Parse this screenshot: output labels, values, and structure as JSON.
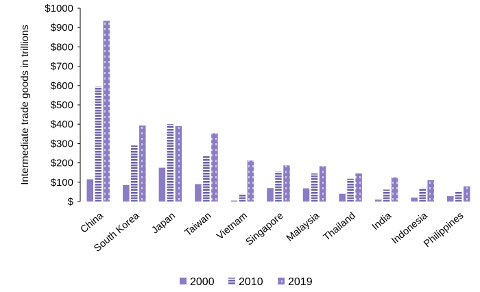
{
  "chart_data": {
    "type": "bar",
    "title": "",
    "xlabel": "",
    "ylabel": "Intermediate trade goods in trillions",
    "categories": [
      "China",
      "South Korea",
      "Japan",
      "Taiwan",
      "Vietnam",
      "Singapore",
      "Malaysia",
      "Thailand",
      "India",
      "Indonesia",
      "Philippines"
    ],
    "series": [
      {
        "name": "2000",
        "values": [
          115,
          85,
          175,
          90,
          5,
          70,
          68,
          40,
          10,
          20,
          28
        ],
        "color": "#8c7cc4",
        "pattern": "solid"
      },
      {
        "name": "2010",
        "values": [
          595,
          290,
          400,
          235,
          40,
          155,
          145,
          118,
          62,
          70,
          55
        ],
        "color": "#8c7cc4",
        "pattern": "horizontal-stripes"
      },
      {
        "name": "2019",
        "values": [
          935,
          393,
          390,
          353,
          212,
          187,
          183,
          145,
          125,
          110,
          78
        ],
        "color": "#8c7cc4",
        "pattern": "vertical-dashes"
      }
    ],
    "ylim": [
      0,
      1000
    ],
    "yticks": [
      "$",
      "$100",
      "$200",
      "$300",
      "$400",
      "$500",
      "$600",
      "$700",
      "$800",
      "$900",
      "$1000"
    ],
    "grid": false,
    "legend_position": "bottom"
  }
}
